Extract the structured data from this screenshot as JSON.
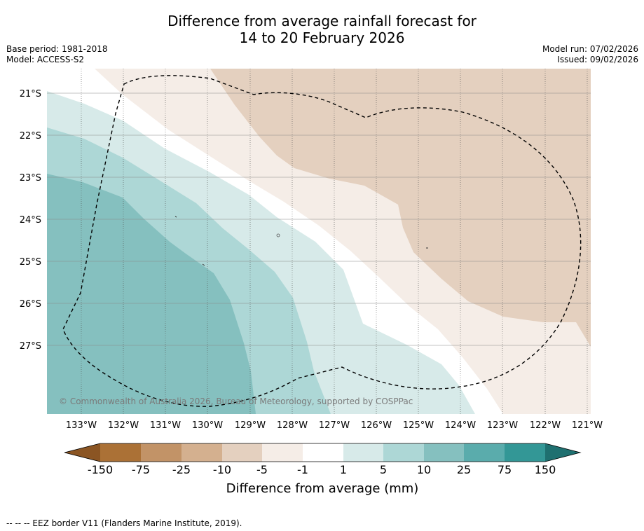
{
  "title": {
    "line1": "Difference from average rainfall forecast for",
    "line2": "14 to 20 February 2026"
  },
  "meta_left": {
    "base_period": "Base period: 1981-2018",
    "model": "Model: ACCESS-S2"
  },
  "meta_right": {
    "model_run": "Model run: 07/02/2026",
    "issued": "Issued: 09/02/2026"
  },
  "map": {
    "latitude_labels": [
      "21°S",
      "22°S",
      "23°S",
      "24°S",
      "25°S",
      "26°S",
      "27°S"
    ],
    "longitude_labels": [
      "133°W",
      "132°W",
      "131°W",
      "130°W",
      "129°W",
      "128°W",
      "127°W",
      "126°W",
      "125°W",
      "124°W",
      "123°W",
      "122°W",
      "121°W"
    ],
    "copyright": "© Commonwealth of Australia 2026, Bureau of Meteorology, supported by COSPPac"
  },
  "colorbar": {
    "tick_labels": [
      "-150",
      "-75",
      "-25",
      "-10",
      "-5",
      "-1",
      "1",
      "5",
      "10",
      "25",
      "75",
      "150"
    ],
    "colors": [
      "#ab7136",
      "#c29367",
      "#d4b08f",
      "#e4d0bf",
      "#f5ede7",
      "#ffffff",
      "#d7eae9",
      "#add7d6",
      "#85c0bf",
      "#5aacac",
      "#339796"
    ],
    "low_extend_color": "#8b5523",
    "high_extend_color": "#1f7070",
    "title": "Difference from average (mm)"
  },
  "footer": "--  --  -- EEZ border V11 (Flanders Marine Institute, 2019)."
}
